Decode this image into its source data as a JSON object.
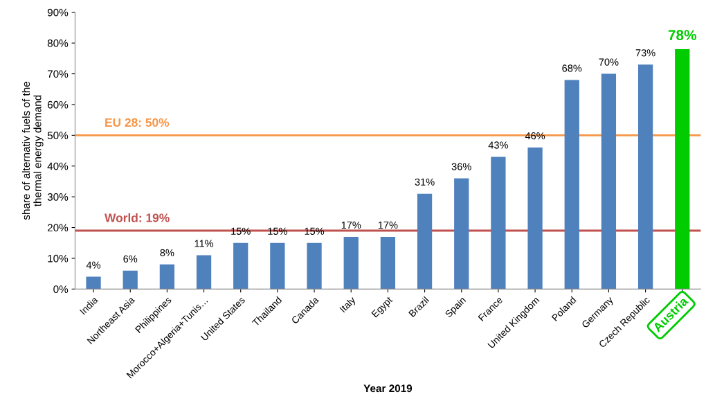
{
  "chart_data": {
    "type": "bar",
    "xlabel": "Year 2019",
    "ylabel": "share of alternativ fuels of the\nthermal energy demand",
    "categories": [
      "India",
      "Northeast Asia",
      "Philippines",
      "Morocco+Algeria+Tunis…",
      "United States",
      "Thailand",
      "Canada",
      "Italy",
      "Egypt",
      "Brazil",
      "Spain",
      "France",
      "United Kingdom",
      "Poland",
      "Germany",
      "Czech Republic",
      "Austria"
    ],
    "values": [
      4,
      6,
      8,
      11,
      15,
      15,
      15,
      17,
      17,
      31,
      36,
      43,
      46,
      68,
      70,
      73,
      78
    ],
    "colors": [
      "#4f81bd",
      "#4f81bd",
      "#4f81bd",
      "#4f81bd",
      "#4f81bd",
      "#4f81bd",
      "#4f81bd",
      "#4f81bd",
      "#4f81bd",
      "#4f81bd",
      "#4f81bd",
      "#4f81bd",
      "#4f81bd",
      "#4f81bd",
      "#4f81bd",
      "#4f81bd",
      "#00cc00"
    ],
    "value_labels": [
      "4%",
      "6%",
      "8%",
      "11%",
      "15%",
      "15%",
      "15%",
      "17%",
      "17%",
      "31%",
      "36%",
      "43%",
      "46%",
      "68%",
      "70%",
      "73%",
      "78%"
    ],
    "ylim": [
      0,
      90
    ],
    "yticks": [
      {
        "value": 0,
        "label": "0%"
      },
      {
        "value": 10,
        "label": "10%"
      },
      {
        "value": 20,
        "label": "20%"
      },
      {
        "value": 30,
        "label": "30%"
      },
      {
        "value": 40,
        "label": "40%"
      },
      {
        "value": 50,
        "label": "50%"
      },
      {
        "value": 60,
        "label": "60%"
      },
      {
        "value": 70,
        "label": "70%"
      },
      {
        "value": 80,
        "label": "80%"
      },
      {
        "value": 90,
        "label": "90%"
      }
    ],
    "ref_lines": [
      {
        "axis": "y",
        "value": 50,
        "label": "EU 28: 50%",
        "color": "#f79646"
      },
      {
        "axis": "y",
        "value": 19,
        "label": "World: 19%",
        "color": "#c0504d"
      }
    ],
    "grid": false,
    "legend": false
  }
}
